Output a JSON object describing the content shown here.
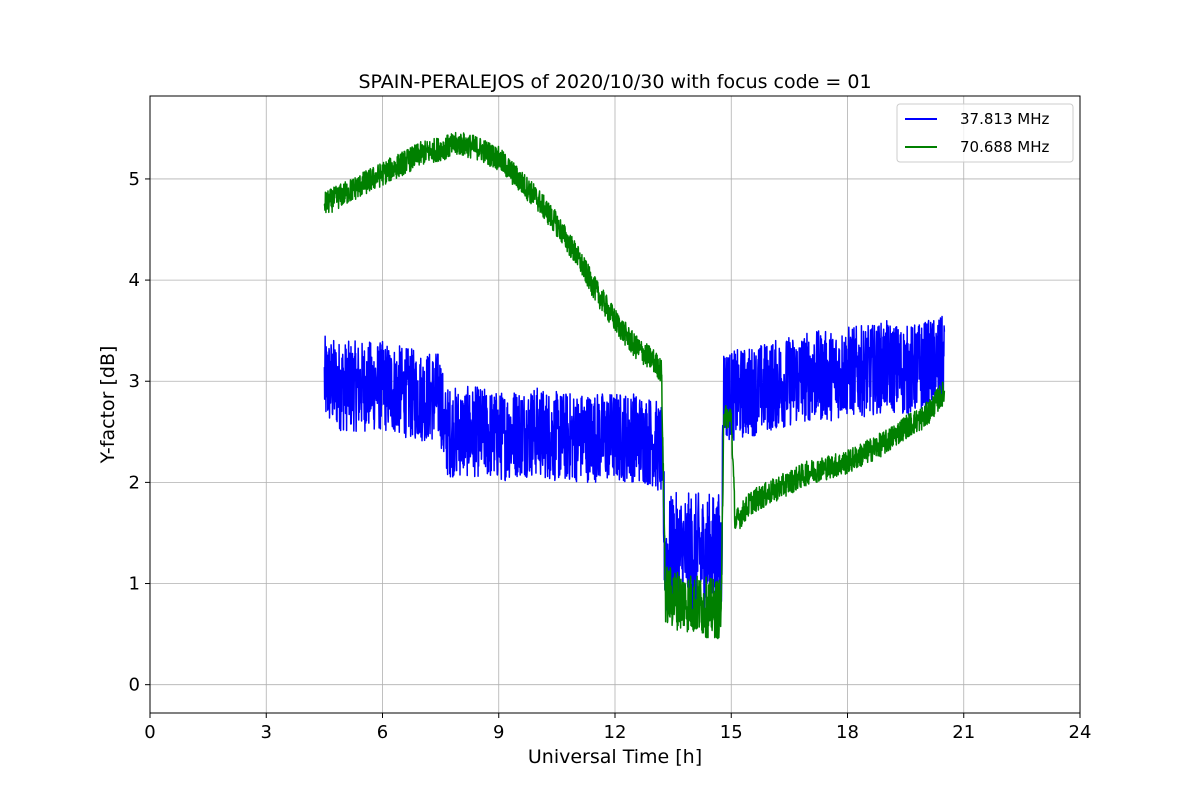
{
  "chart_data": {
    "type": "line",
    "title": "SPAIN-PERALEJOS of 2020/10/30 with focus code = 01",
    "xlabel": "Universal Time [h]",
    "ylabel": "Y-factor [dB]",
    "xlim": [
      0,
      24
    ],
    "ylim": [
      -0.28,
      5.82
    ],
    "xticks": [
      0,
      3,
      6,
      9,
      12,
      15,
      18,
      21,
      24
    ],
    "yticks": [
      0,
      1,
      2,
      3,
      4,
      5
    ],
    "grid": true,
    "legend_position": "top-right",
    "series": [
      {
        "name": "37.813 MHz",
        "color": "#0000ff",
        "x": [
          4.5,
          5.0,
          5.5,
          6.0,
          6.5,
          7.0,
          7.5,
          7.6,
          8.0,
          8.5,
          9.0,
          9.5,
          10.0,
          10.5,
          11.0,
          11.5,
          12.0,
          12.5,
          13.0,
          13.2,
          13.3,
          13.5,
          14.0,
          14.5,
          14.75,
          14.8,
          15.0,
          15.5,
          16.0,
          16.5,
          17.0,
          17.5,
          18.0,
          18.5,
          19.0,
          19.5,
          20.0,
          20.5
        ],
        "y": [
          3.0,
          2.95,
          2.95,
          2.95,
          2.9,
          2.85,
          2.85,
          2.5,
          2.5,
          2.5,
          2.45,
          2.5,
          2.5,
          2.45,
          2.45,
          2.45,
          2.45,
          2.45,
          2.4,
          2.3,
          1.2,
          1.3,
          1.3,
          1.3,
          1.3,
          2.9,
          2.85,
          2.9,
          2.95,
          3.0,
          3.05,
          3.05,
          3.1,
          3.1,
          3.15,
          3.1,
          3.15,
          3.2
        ],
        "noise": 0.45
      },
      {
        "name": "70.688 MHz",
        "color": "#008000",
        "x": [
          4.5,
          5.0,
          5.5,
          6.0,
          6.5,
          7.0,
          7.5,
          8.0,
          8.5,
          9.0,
          9.5,
          10.0,
          10.5,
          11.0,
          11.5,
          12.0,
          12.5,
          13.0,
          13.2,
          13.3,
          13.5,
          14.0,
          14.5,
          14.75,
          14.8,
          15.0,
          15.1,
          15.2,
          15.5,
          16.0,
          16.5,
          17.0,
          17.5,
          18.0,
          18.5,
          19.0,
          19.5,
          20.0,
          20.5
        ],
        "y": [
          4.75,
          4.85,
          4.95,
          5.05,
          5.15,
          5.25,
          5.3,
          5.35,
          5.3,
          5.2,
          5.0,
          4.8,
          4.55,
          4.25,
          3.9,
          3.6,
          3.35,
          3.2,
          3.1,
          0.9,
          0.85,
          0.8,
          0.75,
          0.75,
          2.65,
          2.65,
          1.6,
          1.65,
          1.8,
          1.9,
          2.0,
          2.1,
          2.15,
          2.2,
          2.3,
          2.4,
          2.55,
          2.65,
          2.9
        ],
        "noise": 0.12
      }
    ]
  }
}
